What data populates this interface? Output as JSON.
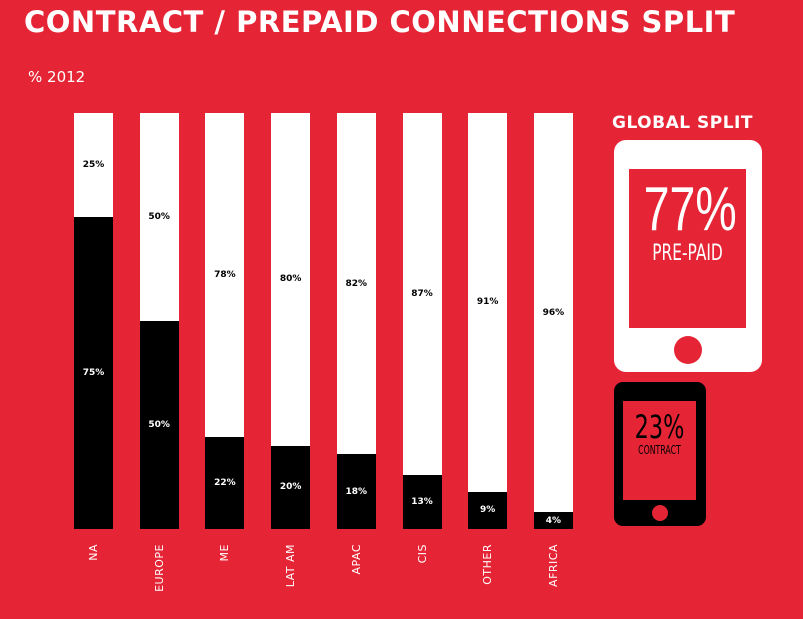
{
  "chart_data": {
    "type": "bar",
    "stacked": true,
    "title": "CONTRACT / PREPAID CONNECTIONS SPLIT",
    "subtitle": "% 2012",
    "categories": [
      "NA",
      "EUROPE",
      "ME",
      "LAT AM",
      "APAC",
      "CIS",
      "OTHER",
      "AFRICA"
    ],
    "series": [
      {
        "key": "contract",
        "color": "#000000",
        "values": [
          75,
          50,
          22,
          20,
          18,
          13,
          9,
          4
        ]
      },
      {
        "key": "prepaid",
        "color": "#ffffff",
        "values": [
          25,
          50,
          78,
          80,
          82,
          87,
          91,
          96
        ]
      }
    ],
    "ylim": [
      0,
      100
    ],
    "grid": false
  },
  "global": {
    "title": "GLOBAL SPLIT",
    "prepaid_pct": "77%",
    "prepaid_label": "PRE-PAID",
    "contract_pct": "23%",
    "contract_label": "CONTRACT"
  },
  "colors": {
    "background": "#e52535",
    "contract": "#000000",
    "prepaid": "#ffffff"
  }
}
